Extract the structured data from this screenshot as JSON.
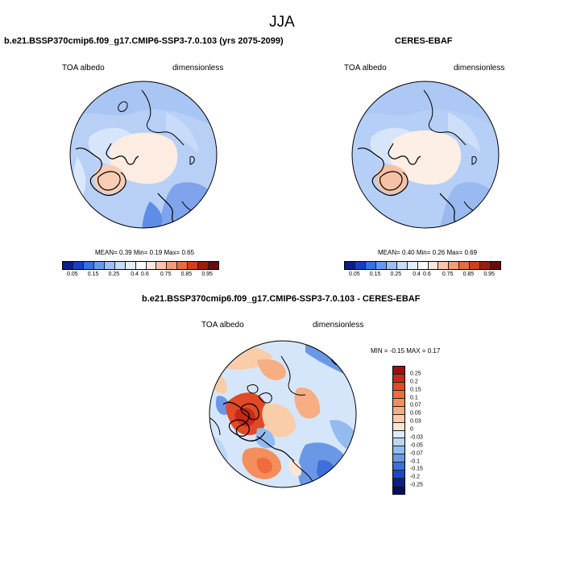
{
  "title": "JJA",
  "panels": [
    {
      "title": "b.e21.BSSP370cmip6.f09_g17.CMIP6-SSP3-7.0.103 (yrs 2075-2099)",
      "left_label": "TOA albedo",
      "right_label": "dimensionless",
      "mean_label": "MEAN=",
      "mean": "0.39",
      "min_label": "Min=",
      "min": "0.19",
      "max_label": "Max=",
      "max": "0.65"
    },
    {
      "title": "CERES-EBAF",
      "left_label": "TOA albedo",
      "right_label": "dimensionless",
      "mean_label": "MEAN=",
      "mean": "0.40",
      "min_label": "Min=",
      "min": "0.26",
      "max_label": "Max=",
      "max": "0.69"
    }
  ],
  "colorbar": {
    "tick_labels": [
      "0.05",
      "0.15",
      "0.25",
      "0.4",
      "0.6",
      "0.75",
      "0.85",
      "0.95"
    ],
    "colors": [
      "#0a1e8c",
      "#1a3ccc",
      "#3a6ee8",
      "#6a96ef",
      "#9ebdf5",
      "#c6dcf8",
      "#e2edfb",
      "#ffffff",
      "#fde7dc",
      "#f8c4ab",
      "#f39c7b",
      "#e96a44",
      "#d23d22",
      "#9c1b12",
      "#6b0a0a"
    ]
  },
  "diff_panel": {
    "title": "b.e21.BSSP370cmip6.f09_g17.CMIP6-SSP3-7.0.103 - CERES-EBAF",
    "left_label": "TOA albedo",
    "right_label": "dimensionless",
    "min_label": "MIN =",
    "min": "-0.15",
    "max_label": "MAX =",
    "max": "0.17",
    "colorbar_labels": [
      "0.25",
      "0.2",
      "0.15",
      "0.1",
      "0.07",
      "0.05",
      "0.03",
      "0",
      "-0.03",
      "-0.05",
      "-0.07",
      "-0.1",
      "-0.15",
      "-0.2",
      "-0.25"
    ],
    "colors": [
      "#9b1010",
      "#c52a16",
      "#e14a26",
      "#ef6c3c",
      "#f48e5c",
      "#f7ae82",
      "#f9cdaa",
      "#fbe6d6",
      "#dcebfa",
      "#bcd6f5",
      "#94bbef",
      "#6a98e6",
      "#3f6fd8",
      "#1e48c2",
      "#0a1f8c",
      "#050f5a"
    ]
  },
  "colors": {
    "ocean": "#b4cdf5",
    "ocean_light": "#d7e6fa",
    "ice": "#fce9de",
    "ice_warm": "#f8c9ad",
    "blue_deep": "#4e7fe0",
    "diff_red": "#e05a36",
    "diff_blue": "#3f6fd8"
  }
}
